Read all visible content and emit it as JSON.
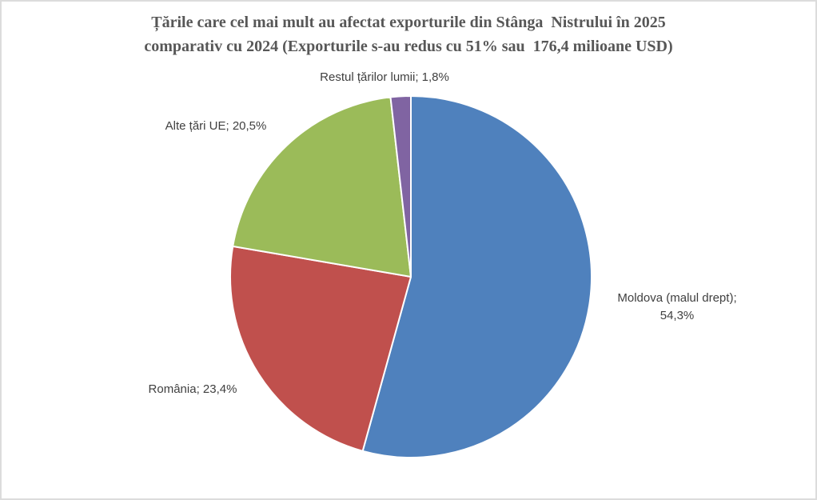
{
  "chart_data": {
    "type": "pie",
    "title": "Țările care cel mai mult au afectat exporturile din Stânga  Nistrului în 2025 comparativ cu 2024 (Exporturile s-au redus cu 51% sau  176,4 milioane USD)",
    "title_lines": [
      "Țările care cel mai mult au afectat exporturile din Stânga  Nistrului în 2025",
      "comparativ cu 2024 (Exporturile s-au redus cu 51% sau  176,4 milioane USD)"
    ],
    "categories": [
      "Moldova (malul drept)",
      "România",
      "Alte țări UE",
      "Restul țărilor lumii"
    ],
    "values": [
      54.3,
      23.4,
      20.5,
      1.8
    ],
    "unit": "%",
    "value_labels": [
      "54,3%",
      "23,4%",
      "20,5%",
      "1,8%"
    ],
    "labels": [
      "Moldova (malul drept);\n54,3%",
      "România; 23,4%",
      "Alte țări UE; 20,5%",
      "Restul țărilor lumii; 1,8%"
    ],
    "slice_names": [
      "moldova-malul-drept",
      "romania",
      "alte-tari-ue",
      "restul-tarilor-lumii"
    ],
    "colors": [
      "#4F81BD",
      "#C0504D",
      "#9BBB59",
      "#8064A2"
    ],
    "slice_border_color": "#FFFFFF",
    "start_angle_deg": 0,
    "direction": "clockwise",
    "legend": "none",
    "title_color": "#575757",
    "label_color": "#3F3F3F"
  }
}
